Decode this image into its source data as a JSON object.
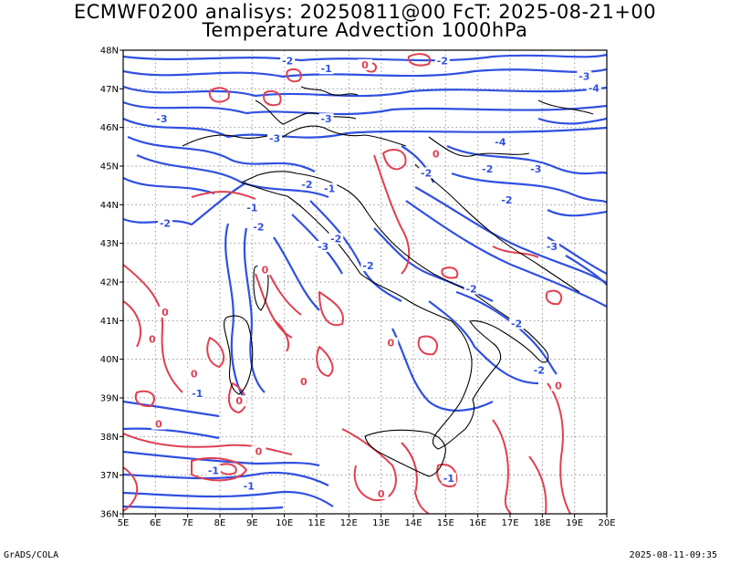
{
  "header": {
    "line1": "ECMWF0200 analisys: 20250811@00 FcT: 2025-08-21+00",
    "line2": "Temperature Advection 1000hPa"
  },
  "axes": {
    "lon_labels": [
      "5E",
      "6E",
      "7E",
      "8E",
      "9E",
      "10E",
      "11E",
      "12E",
      "13E",
      "14E",
      "15E",
      "16E",
      "17E",
      "18E",
      "19E",
      "20E"
    ],
    "lat_labels": [
      "36N",
      "37N",
      "38N",
      "39N",
      "40N",
      "41N",
      "42N",
      "43N",
      "44N",
      "45N",
      "46N",
      "47N",
      "48N"
    ],
    "lon_range": [
      5,
      20
    ],
    "lat_range": [
      36,
      48
    ]
  },
  "contours": {
    "negative_color": "#3050e0",
    "positive_color": "#e04050",
    "coast_color": "#000000",
    "labels": [
      {
        "text": "-2",
        "lon": 10.1,
        "lat": 47.7,
        "sign": "neg"
      },
      {
        "text": "-1",
        "lon": 11.3,
        "lat": 47.5,
        "sign": "neg"
      },
      {
        "text": "-2",
        "lon": 14.9,
        "lat": 47.7,
        "sign": "neg"
      },
      {
        "text": "-3",
        "lon": 19.3,
        "lat": 47.3,
        "sign": "neg"
      },
      {
        "text": "-4",
        "lon": 19.6,
        "lat": 47.0,
        "sign": "neg"
      },
      {
        "text": "-3",
        "lon": 6.2,
        "lat": 46.2,
        "sign": "neg"
      },
      {
        "text": "-3",
        "lon": 11.3,
        "lat": 46.2,
        "sign": "neg"
      },
      {
        "text": "-3",
        "lon": 9.7,
        "lat": 45.7,
        "sign": "neg"
      },
      {
        "text": "-4",
        "lon": 16.7,
        "lat": 45.6,
        "sign": "neg"
      },
      {
        "text": "-3",
        "lon": 17.8,
        "lat": 44.9,
        "sign": "neg"
      },
      {
        "text": "-2",
        "lon": 16.3,
        "lat": 44.9,
        "sign": "neg"
      },
      {
        "text": "-2",
        "lon": 14.4,
        "lat": 44.8,
        "sign": "neg"
      },
      {
        "text": "-2",
        "lon": 10.7,
        "lat": 44.5,
        "sign": "neg"
      },
      {
        "text": "-1",
        "lon": 11.4,
        "lat": 44.4,
        "sign": "neg"
      },
      {
        "text": "-2",
        "lon": 16.9,
        "lat": 44.1,
        "sign": "neg"
      },
      {
        "text": "-2",
        "lon": 6.3,
        "lat": 43.5,
        "sign": "neg"
      },
      {
        "text": "-1",
        "lon": 9.0,
        "lat": 43.9,
        "sign": "neg"
      },
      {
        "text": "-2",
        "lon": 9.2,
        "lat": 43.4,
        "sign": "neg"
      },
      {
        "text": "-3",
        "lon": 11.2,
        "lat": 42.9,
        "sign": "neg"
      },
      {
        "text": "-2",
        "lon": 11.6,
        "lat": 43.1,
        "sign": "neg"
      },
      {
        "text": "-3",
        "lon": 18.3,
        "lat": 42.9,
        "sign": "neg"
      },
      {
        "text": "-2",
        "lon": 12.6,
        "lat": 42.4,
        "sign": "neg"
      },
      {
        "text": "-2",
        "lon": 15.8,
        "lat": 41.8,
        "sign": "neg"
      },
      {
        "text": "-2",
        "lon": 17.2,
        "lat": 40.9,
        "sign": "neg"
      },
      {
        "text": "-2",
        "lon": 17.9,
        "lat": 39.7,
        "sign": "neg"
      },
      {
        "text": "-1",
        "lon": 7.3,
        "lat": 39.1,
        "sign": "neg"
      },
      {
        "text": "-1",
        "lon": 7.8,
        "lat": 37.1,
        "sign": "neg"
      },
      {
        "text": "-1",
        "lon": 15.1,
        "lat": 36.9,
        "sign": "neg"
      },
      {
        "text": "-1",
        "lon": 8.9,
        "lat": 36.7,
        "sign": "neg"
      },
      {
        "text": "0",
        "lon": 12.5,
        "lat": 47.6,
        "sign": "pos"
      },
      {
        "text": "0",
        "lon": 14.7,
        "lat": 45.3,
        "sign": "pos"
      },
      {
        "text": "0",
        "lon": 9.4,
        "lat": 42.3,
        "sign": "pos"
      },
      {
        "text": "0",
        "lon": 5.9,
        "lat": 40.5,
        "sign": "pos"
      },
      {
        "text": "0",
        "lon": 6.3,
        "lat": 41.2,
        "sign": "pos"
      },
      {
        "text": "0",
        "lon": 13.3,
        "lat": 40.4,
        "sign": "pos"
      },
      {
        "text": "0",
        "lon": 7.2,
        "lat": 39.6,
        "sign": "pos"
      },
      {
        "text": "0",
        "lon": 10.6,
        "lat": 39.4,
        "sign": "pos"
      },
      {
        "text": "0",
        "lon": 18.5,
        "lat": 39.3,
        "sign": "pos"
      },
      {
        "text": "0",
        "lon": 8.6,
        "lat": 38.9,
        "sign": "pos"
      },
      {
        "text": "0",
        "lon": 6.1,
        "lat": 38.3,
        "sign": "pos"
      },
      {
        "text": "0",
        "lon": 9.2,
        "lat": 37.6,
        "sign": "pos"
      },
      {
        "text": "0",
        "lon": 13.0,
        "lat": 36.5,
        "sign": "pos"
      }
    ]
  },
  "footer": {
    "left": "GrADS/COLA",
    "right": "2025-08-11-09:35"
  }
}
